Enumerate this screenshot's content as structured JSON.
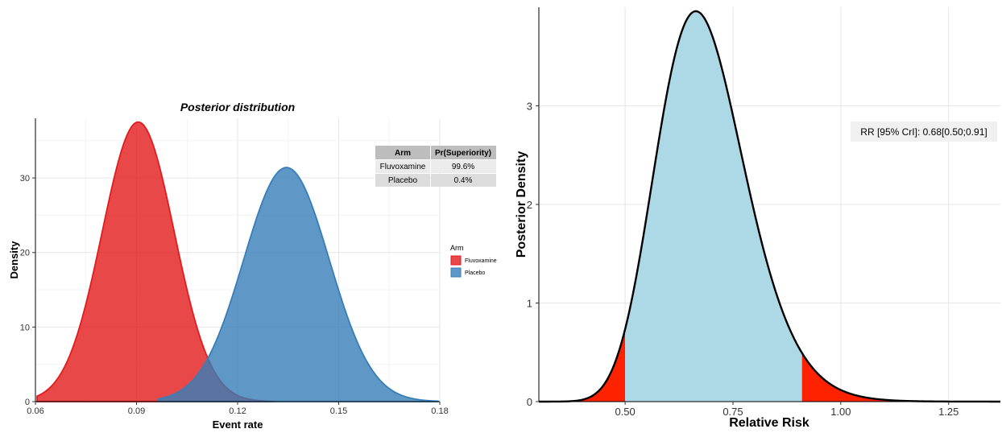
{
  "chart_data": [
    {
      "type": "area",
      "title": "Posterior distribution",
      "xlabel": "Event rate",
      "ylabel": "Density",
      "xlim": [
        0.06,
        0.18
      ],
      "ylim": [
        0,
        38
      ],
      "x_ticks": [
        "0.06",
        "0.09",
        "0.12",
        "0.15",
        "0.18"
      ],
      "y_ticks": [
        "0",
        "10",
        "20",
        "30"
      ],
      "grid": true,
      "series": [
        {
          "name": "Fluvoxamine",
          "color": "#e41a1c",
          "fill": "#e41a1c",
          "opacity": 0.8,
          "mean": 0.0905,
          "sd": 0.0107,
          "peak_density": 37.5,
          "x_range": [
            0.0605,
            0.1305
          ]
        },
        {
          "name": "Placebo",
          "color": "#377eb8",
          "fill": "#377eb8",
          "opacity": 0.8,
          "mean": 0.1345,
          "sd": 0.0127,
          "peak_density": 31.4,
          "x_range": [
            0.0965,
            0.1795
          ]
        }
      ],
      "table": {
        "headers": [
          "Arm",
          "Pr(Superiority)"
        ],
        "rows": [
          [
            "Fluvoxamine",
            "99.6%"
          ],
          [
            "Placebo",
            "0.4%"
          ]
        ]
      },
      "legend": {
        "title": "Arm",
        "position": "right",
        "entries": [
          "Fluvoxamine",
          "Placebo"
        ]
      }
    },
    {
      "type": "area",
      "xlabel": "Relative Risk",
      "ylabel": "Posterior Density",
      "xlim": [
        0.3,
        1.37
      ],
      "ylim": [
        0,
        4
      ],
      "x_ticks": [
        "0.50",
        "0.75",
        "1.00",
        "1.25"
      ],
      "y_ticks": [
        "0",
        "1",
        "2",
        "3"
      ],
      "grid": true,
      "distribution": {
        "log_mean": -0.3857,
        "log_sd": 0.1545,
        "peak_density": 3.96,
        "mode": 0.66,
        "x_range": [
          0.3,
          1.37
        ]
      },
      "credible_interval": [
        0.5,
        0.91
      ],
      "interval_fill": "#add8e6",
      "tail_fill": "#ff2200",
      "annotation": "RR [95% CrI]: 0.68[0.50;0.91]"
    }
  ]
}
